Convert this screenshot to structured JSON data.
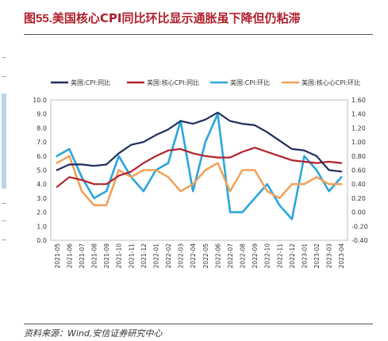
{
  "header": {
    "figure_no": "图55.",
    "title": "美国核心CPI同比环比显示通胀虽下降但仍粘滞"
  },
  "footer": {
    "source": "资料来源：Wind,安信证券研究中心"
  },
  "chart_data": {
    "type": "line",
    "categories": [
      "2021-05",
      "2021-06",
      "2021-07",
      "2021-08",
      "2021-09",
      "2021-10",
      "2021-11",
      "2021-12",
      "2022-01",
      "2022-02",
      "2022-03",
      "2022-04",
      "2022-05",
      "2022-06",
      "2022-07",
      "2022-08",
      "2022-09",
      "2022-10",
      "2022-11",
      "2022-12",
      "2023-01",
      "2023-02",
      "2023-03",
      "2023-04"
    ],
    "left_axis": {
      "ylim": [
        0,
        10
      ],
      "ticks": [
        "0.0",
        "1.0",
        "2.0",
        "3.0",
        "4.0",
        "5.0",
        "6.0",
        "7.0",
        "8.0",
        "9.0",
        "10.0"
      ]
    },
    "right_axis": {
      "ylim": [
        -0.4,
        1.6
      ],
      "ticks": [
        "-0.40",
        "-0.20",
        "0.00",
        "0.20",
        "0.40",
        "0.60",
        "0.80",
        "1.00",
        "1.20",
        "1.40",
        "1.60"
      ]
    },
    "legend_position": "top",
    "series": [
      {
        "name": "美国:CPI:同比",
        "axis": "left",
        "color": "#1f2f5c",
        "values": [
          5.0,
          5.4,
          5.4,
          5.3,
          5.4,
          6.2,
          6.8,
          7.0,
          7.5,
          7.9,
          8.5,
          8.3,
          8.6,
          9.1,
          8.5,
          8.3,
          8.2,
          7.7,
          7.1,
          6.5,
          6.4,
          6.0,
          5.0,
          4.9
        ]
      },
      {
        "name": "美国:核心CPI:同比",
        "axis": "left",
        "color": "#b2222a",
        "values": [
          3.8,
          4.5,
          4.3,
          4.0,
          4.0,
          4.6,
          4.9,
          5.5,
          6.0,
          6.4,
          6.5,
          6.2,
          6.0,
          5.9,
          5.9,
          6.3,
          6.6,
          6.3,
          6.0,
          5.7,
          5.6,
          5.5,
          5.6,
          5.5
        ]
      },
      {
        "name": "美国:CPI:环比",
        "axis": "right",
        "color": "#2aa6dc",
        "values": [
          0.8,
          0.9,
          0.5,
          0.2,
          0.3,
          0.8,
          0.5,
          0.3,
          0.6,
          0.7,
          1.3,
          0.3,
          1.0,
          1.4,
          0.0,
          0.0,
          0.2,
          0.4,
          0.1,
          -0.1,
          0.8,
          0.6,
          0.3,
          0.5
        ]
      },
      {
        "name": "美国:核心心CPI:环比",
        "axis": "right",
        "color": "#f0a25a",
        "values": [
          0.7,
          0.8,
          0.3,
          0.1,
          0.1,
          0.6,
          0.5,
          0.6,
          0.6,
          0.5,
          0.3,
          0.4,
          0.6,
          0.7,
          0.3,
          0.6,
          0.6,
          0.3,
          0.2,
          0.4,
          0.4,
          0.5,
          0.4,
          0.4
        ]
      }
    ]
  }
}
